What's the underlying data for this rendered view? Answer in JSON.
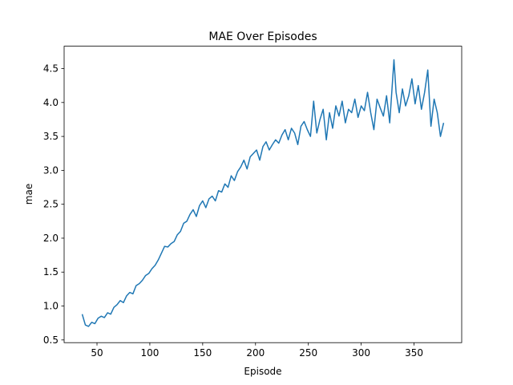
{
  "chart_data": {
    "type": "line",
    "title": "MAE Over Episodes",
    "x_label": "Episode",
    "y_label": "mae",
    "x": [
      36,
      39,
      42,
      45,
      48,
      51,
      54,
      57,
      60,
      63,
      66,
      69,
      72,
      75,
      78,
      81,
      84,
      87,
      90,
      93,
      96,
      99,
      102,
      105,
      108,
      111,
      114,
      117,
      120,
      123,
      126,
      129,
      132,
      135,
      138,
      141,
      144,
      147,
      150,
      153,
      156,
      159,
      162,
      165,
      168,
      171,
      174,
      177,
      180,
      183,
      186,
      189,
      192,
      195,
      198,
      201,
      204,
      207,
      210,
      213,
      216,
      219,
      222,
      225,
      228,
      231,
      234,
      237,
      240,
      243,
      246,
      249,
      252,
      255,
      258,
      261,
      264,
      267,
      270,
      273,
      276,
      279,
      282,
      285,
      288,
      291,
      294,
      297,
      300,
      303,
      306,
      309,
      312,
      315,
      318,
      321,
      324,
      327,
      331,
      333,
      336,
      339,
      342,
      345,
      348,
      351,
      354,
      357,
      360,
      363,
      366,
      369,
      372,
      375,
      378
    ],
    "series": [
      {
        "name": "mae",
        "color": "#1f77b4",
        "values": [
          0.88,
          0.72,
          0.7,
          0.76,
          0.74,
          0.82,
          0.85,
          0.83,
          0.9,
          0.88,
          0.98,
          1.02,
          1.08,
          1.05,
          1.15,
          1.2,
          1.18,
          1.3,
          1.33,
          1.38,
          1.45,
          1.48,
          1.55,
          1.6,
          1.68,
          1.78,
          1.88,
          1.87,
          1.92,
          1.95,
          2.05,
          2.1,
          2.22,
          2.25,
          2.35,
          2.42,
          2.32,
          2.48,
          2.55,
          2.45,
          2.58,
          2.62,
          2.55,
          2.7,
          2.68,
          2.8,
          2.75,
          2.92,
          2.85,
          2.98,
          3.05,
          3.15,
          3.02,
          3.2,
          3.25,
          3.3,
          3.15,
          3.35,
          3.42,
          3.3,
          3.38,
          3.45,
          3.4,
          3.52,
          3.6,
          3.45,
          3.62,
          3.55,
          3.38,
          3.65,
          3.72,
          3.6,
          3.5,
          4.02,
          3.55,
          3.75,
          3.9,
          3.45,
          3.85,
          3.62,
          3.95,
          3.8,
          4.02,
          3.7,
          3.9,
          3.85,
          4.05,
          3.78,
          3.95,
          3.88,
          4.15,
          3.85,
          3.6,
          4.05,
          3.92,
          3.8,
          4.1,
          3.7,
          4.63,
          4.15,
          3.85,
          4.2,
          3.95,
          4.1,
          4.35,
          3.98,
          4.25,
          3.9,
          4.15,
          4.48,
          3.65,
          4.05,
          3.85,
          3.5,
          3.7
        ]
      }
    ],
    "xlim": [
      18.9,
      395.1
    ],
    "xticks": [
      50,
      100,
      150,
      200,
      250,
      300,
      350
    ],
    "ylim": [
      0.46,
      4.83
    ],
    "yticks": [
      0.5,
      {
        "value": 1,
        "label": "1.0"
      },
      1.5,
      {
        "value": 2,
        "label": "2.0"
      },
      2.5,
      {
        "value": 3,
        "label": "3.0"
      },
      3.5,
      {
        "value": 4,
        "label": "4.0"
      },
      4.5
    ],
    "grid": false
  }
}
